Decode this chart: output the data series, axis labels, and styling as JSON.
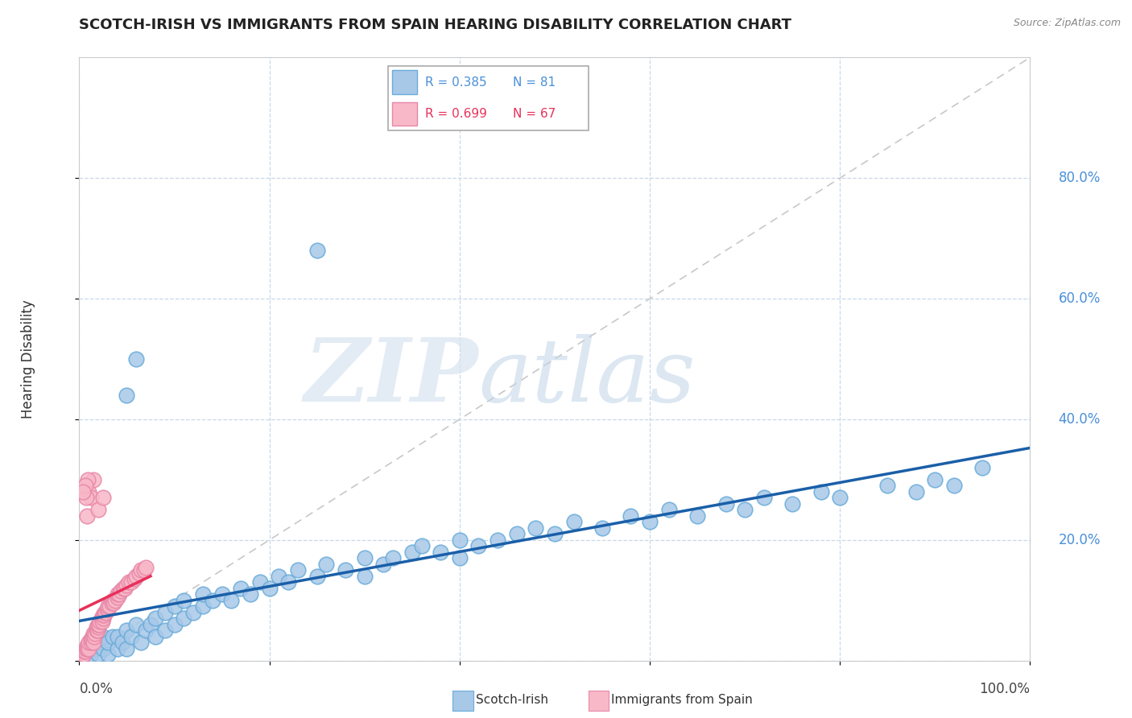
{
  "title": "SCOTCH-IRISH VS IMMIGRANTS FROM SPAIN HEARING DISABILITY CORRELATION CHART",
  "source": "Source: ZipAtlas.com",
  "ylabel": "Hearing Disability",
  "legend_blue_label": "Scotch-Irish",
  "legend_pink_label": "Immigrants from Spain",
  "legend_blue_r": "R = 0.385",
  "legend_blue_n": "N = 81",
  "legend_pink_r": "R = 0.699",
  "legend_pink_n": "N = 67",
  "blue_color": "#a8c8e8",
  "blue_edge_color": "#6aacda",
  "blue_line_color": "#1a5fa8",
  "pink_color": "#f8b8c8",
  "pink_edge_color": "#e888a8",
  "pink_line_color": "#e8305a",
  "diagonal_color": "#c8c8c8",
  "background_color": "#ffffff",
  "grid_color": "#c8d8e8",
  "ytick_color": "#4a90d9",
  "xlim": [
    0.0,
    1.0
  ],
  "ylim": [
    0.0,
    1.0
  ],
  "blue_x": [
    0.005,
    0.008,
    0.01,
    0.012,
    0.015,
    0.018,
    0.02,
    0.02,
    0.025,
    0.025,
    0.03,
    0.03,
    0.035,
    0.04,
    0.04,
    0.045,
    0.05,
    0.05,
    0.055,
    0.06,
    0.065,
    0.07,
    0.075,
    0.08,
    0.08,
    0.09,
    0.09,
    0.1,
    0.1,
    0.11,
    0.11,
    0.12,
    0.13,
    0.13,
    0.14,
    0.15,
    0.16,
    0.17,
    0.18,
    0.19,
    0.2,
    0.21,
    0.22,
    0.23,
    0.25,
    0.26,
    0.28,
    0.3,
    0.3,
    0.32,
    0.33,
    0.35,
    0.36,
    0.38,
    0.4,
    0.4,
    0.42,
    0.44,
    0.46,
    0.48,
    0.5,
    0.52,
    0.55,
    0.58,
    0.6,
    0.62,
    0.65,
    0.68,
    0.7,
    0.72,
    0.75,
    0.78,
    0.8,
    0.85,
    0.88,
    0.9,
    0.92,
    0.95,
    0.05,
    0.06,
    0.25
  ],
  "blue_y": [
    0.01,
    0.015,
    0.02,
    0.01,
    0.02,
    0.025,
    0.01,
    0.03,
    0.02,
    0.04,
    0.01,
    0.03,
    0.04,
    0.02,
    0.04,
    0.03,
    0.02,
    0.05,
    0.04,
    0.06,
    0.03,
    0.05,
    0.06,
    0.04,
    0.07,
    0.05,
    0.08,
    0.06,
    0.09,
    0.07,
    0.1,
    0.08,
    0.09,
    0.11,
    0.1,
    0.11,
    0.1,
    0.12,
    0.11,
    0.13,
    0.12,
    0.14,
    0.13,
    0.15,
    0.14,
    0.16,
    0.15,
    0.14,
    0.17,
    0.16,
    0.17,
    0.18,
    0.19,
    0.18,
    0.17,
    0.2,
    0.19,
    0.2,
    0.21,
    0.22,
    0.21,
    0.23,
    0.22,
    0.24,
    0.23,
    0.25,
    0.24,
    0.26,
    0.25,
    0.27,
    0.26,
    0.28,
    0.27,
    0.29,
    0.28,
    0.3,
    0.29,
    0.32,
    0.44,
    0.5,
    0.68
  ],
  "pink_x": [
    0.002,
    0.003,
    0.004,
    0.005,
    0.005,
    0.006,
    0.007,
    0.008,
    0.008,
    0.009,
    0.01,
    0.01,
    0.012,
    0.012,
    0.013,
    0.014,
    0.015,
    0.015,
    0.016,
    0.017,
    0.018,
    0.018,
    0.019,
    0.02,
    0.02,
    0.021,
    0.022,
    0.023,
    0.024,
    0.025,
    0.025,
    0.026,
    0.027,
    0.028,
    0.029,
    0.03,
    0.03,
    0.032,
    0.034,
    0.035,
    0.036,
    0.038,
    0.04,
    0.04,
    0.042,
    0.044,
    0.046,
    0.048,
    0.05,
    0.052,
    0.055,
    0.058,
    0.06,
    0.063,
    0.065,
    0.068,
    0.07,
    0.008,
    0.01,
    0.012,
    0.015,
    0.02,
    0.025,
    0.007,
    0.009,
    0.006,
    0.004
  ],
  "pink_y": [
    0.005,
    0.008,
    0.01,
    0.01,
    0.015,
    0.015,
    0.02,
    0.02,
    0.025,
    0.025,
    0.02,
    0.03,
    0.03,
    0.035,
    0.035,
    0.04,
    0.03,
    0.045,
    0.04,
    0.045,
    0.05,
    0.055,
    0.05,
    0.055,
    0.06,
    0.06,
    0.065,
    0.07,
    0.065,
    0.07,
    0.075,
    0.075,
    0.08,
    0.08,
    0.085,
    0.085,
    0.09,
    0.09,
    0.095,
    0.1,
    0.095,
    0.1,
    0.105,
    0.11,
    0.11,
    0.115,
    0.12,
    0.12,
    0.125,
    0.13,
    0.13,
    0.135,
    0.14,
    0.145,
    0.15,
    0.15,
    0.155,
    0.24,
    0.28,
    0.27,
    0.3,
    0.25,
    0.27,
    0.27,
    0.3,
    0.29,
    0.28
  ]
}
